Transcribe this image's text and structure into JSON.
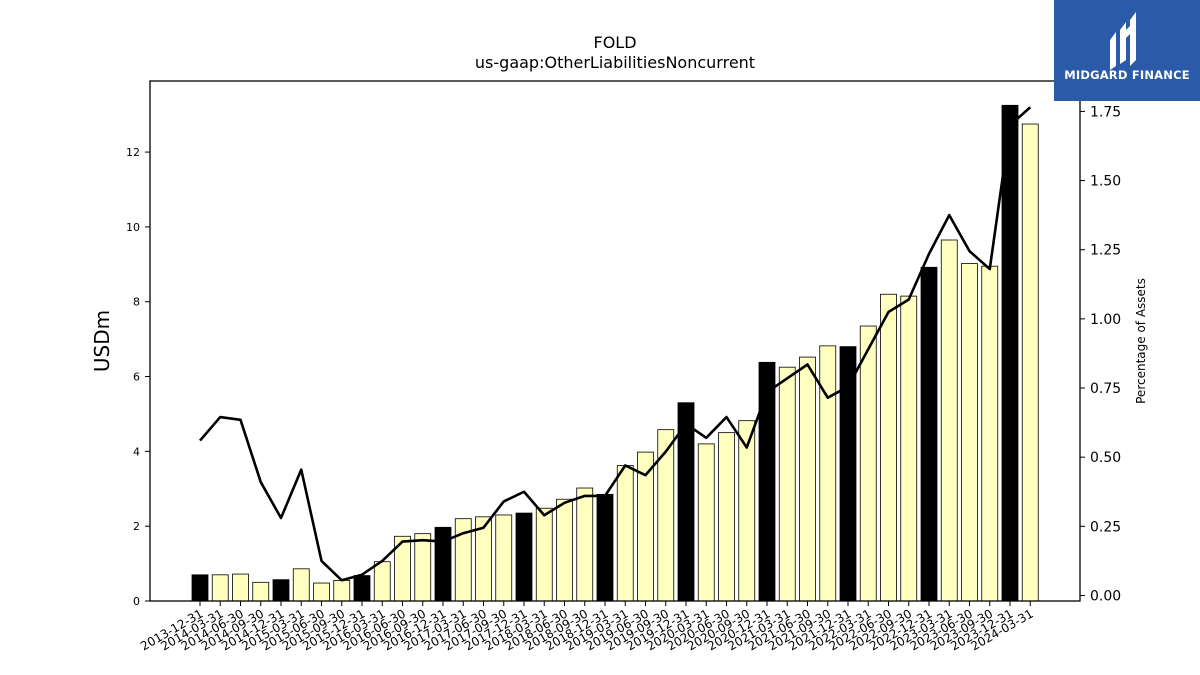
{
  "chart_data": {
    "type": "bar",
    "title": "FOLD",
    "subtitle": "us-gaap:OtherLiabilitiesNoncurrent",
    "ylabel": "USDm",
    "y2label": "Percentage of Assets",
    "ylim": [
      0,
      13.9
    ],
    "y2lim": [
      -0.02,
      1.86
    ],
    "yticks": [
      0,
      2,
      4,
      6,
      8,
      10,
      12
    ],
    "y2ticks": [
      "0.00",
      "0.25",
      "0.50",
      "0.75",
      "1.00",
      "1.25",
      "1.50",
      "1.75"
    ],
    "categories": [
      "2013-12-31",
      "2014-03-31",
      "2014-06-30",
      "2014-09-30",
      "2014-12-31",
      "2015-03-31",
      "2015-06-30",
      "2015-09-30",
      "2015-12-31",
      "2016-03-31",
      "2016-06-30",
      "2016-09-30",
      "2016-12-31",
      "2017-03-31",
      "2017-06-30",
      "2017-09-30",
      "2017-12-31",
      "2018-03-31",
      "2018-06-30",
      "2018-09-30",
      "2018-12-31",
      "2019-03-31",
      "2019-06-30",
      "2019-09-30",
      "2019-12-31",
      "2020-03-31",
      "2020-06-30",
      "2020-09-30",
      "2020-12-31",
      "2021-03-31",
      "2021-06-30",
      "2021-09-30",
      "2021-12-31",
      "2022-03-31",
      "2022-06-30",
      "2022-09-30",
      "2022-12-31",
      "2023-03-31",
      "2023-06-30",
      "2023-09-30",
      "2023-12-31",
      "2024-03-31"
    ],
    "series": [
      {
        "type": "bar",
        "values": [
          0.7,
          0.7,
          0.72,
          0.5,
          0.57,
          0.86,
          0.48,
          0.55,
          0.68,
          1.05,
          1.73,
          1.8,
          1.97,
          2.2,
          2.25,
          2.3,
          2.35,
          2.48,
          2.72,
          3.02,
          2.85,
          3.62,
          3.98,
          4.58,
          5.3,
          4.2,
          4.5,
          4.82,
          6.38,
          6.25,
          6.52,
          6.82,
          6.8,
          7.35,
          8.2,
          8.15,
          8.92,
          9.65,
          9.02,
          8.95,
          13.25,
          12.75
        ],
        "annual": [
          true,
          false,
          false,
          false,
          true,
          false,
          false,
          false,
          true,
          false,
          false,
          false,
          true,
          false,
          false,
          false,
          true,
          false,
          false,
          false,
          true,
          false,
          false,
          false,
          true,
          false,
          false,
          false,
          true,
          false,
          false,
          false,
          true,
          false,
          false,
          false,
          true,
          false,
          false,
          false,
          true,
          false
        ]
      },
      {
        "type": "line",
        "axis": "right",
        "values": [
          0.56,
          0.645,
          0.635,
          0.41,
          0.28,
          0.455,
          0.125,
          0.055,
          0.075,
          0.125,
          0.195,
          0.2,
          0.195,
          0.225,
          0.245,
          0.34,
          0.375,
          0.29,
          0.335,
          0.36,
          0.36,
          0.47,
          0.435,
          0.52,
          0.62,
          0.57,
          0.645,
          0.535,
          0.735,
          0.785,
          0.835,
          0.715,
          0.755,
          0.89,
          1.025,
          1.07,
          1.235,
          1.375,
          1.245,
          1.18,
          1.7,
          1.765
        ]
      }
    ],
    "colors": {
      "bar_fill": "#ffffbf",
      "bar_annual_fill": "#000000",
      "bar_edge": "#000000",
      "line": "#000000"
    }
  },
  "logo": {
    "text": "MIDGARD FINANCE",
    "bg": "#2a5aa8"
  }
}
